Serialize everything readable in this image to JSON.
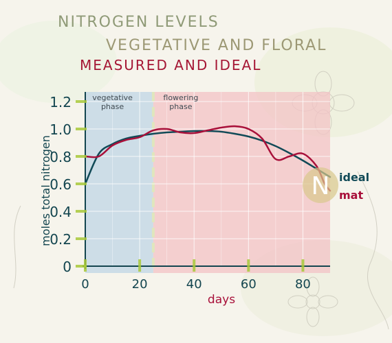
{
  "titles": {
    "line1": "NITROGEN LEVELS",
    "line2": "VEGETATIVE AND FLORAL",
    "line3": "MEASURED AND IDEAL"
  },
  "legend": {
    "badge": "N",
    "ideal": "ideal",
    "mat": "mat"
  },
  "colors": {
    "ideal": "#114a57",
    "measured": "#a8103a",
    "vegetative_band": "#bfd6e6",
    "flowering_band": "#f3c3c6",
    "axis": "#13454f",
    "marker": "#a9c93a"
  },
  "chart_data": {
    "type": "line",
    "xlabel": "days",
    "ylabel": "moles total nitrogen",
    "xlim": [
      0,
      90
    ],
    "ylim": [
      0,
      1.2
    ],
    "x_ticks": [
      "0",
      "20",
      "40",
      "60",
      "80"
    ],
    "y_ticks": [
      "0",
      "0.2",
      "0.4",
      "0.6",
      "0.8",
      "1.0",
      "1.2"
    ],
    "grid": true,
    "phases": [
      {
        "label": "vegetative phase",
        "start": 0,
        "end": 25
      },
      {
        "label": "flowering phase",
        "start": 25,
        "end": 90
      }
    ],
    "series": [
      {
        "name": "ideal",
        "x": [
          0,
          5,
          10,
          15,
          20,
          25,
          30,
          35,
          40,
          45,
          50,
          55,
          60,
          65,
          70,
          75,
          80,
          85,
          90
        ],
        "y": [
          0.6,
          0.82,
          0.89,
          0.93,
          0.95,
          0.965,
          0.975,
          0.98,
          0.985,
          0.985,
          0.98,
          0.965,
          0.945,
          0.915,
          0.875,
          0.825,
          0.77,
          0.71,
          0.65
        ]
      },
      {
        "name": "mat",
        "x": [
          0,
          5,
          10,
          15,
          20,
          25,
          30,
          35,
          40,
          45,
          50,
          55,
          60,
          65,
          70,
          75,
          80,
          85,
          88,
          90
        ],
        "y": [
          0.8,
          0.8,
          0.88,
          0.92,
          0.94,
          0.99,
          1.0,
          0.975,
          0.97,
          0.99,
          1.01,
          1.02,
          1.0,
          0.93,
          0.78,
          0.8,
          0.82,
          0.73,
          0.6,
          0.55
        ]
      }
    ],
    "phase_labels": [
      "vegetative phase",
      "flowering phase"
    ]
  }
}
